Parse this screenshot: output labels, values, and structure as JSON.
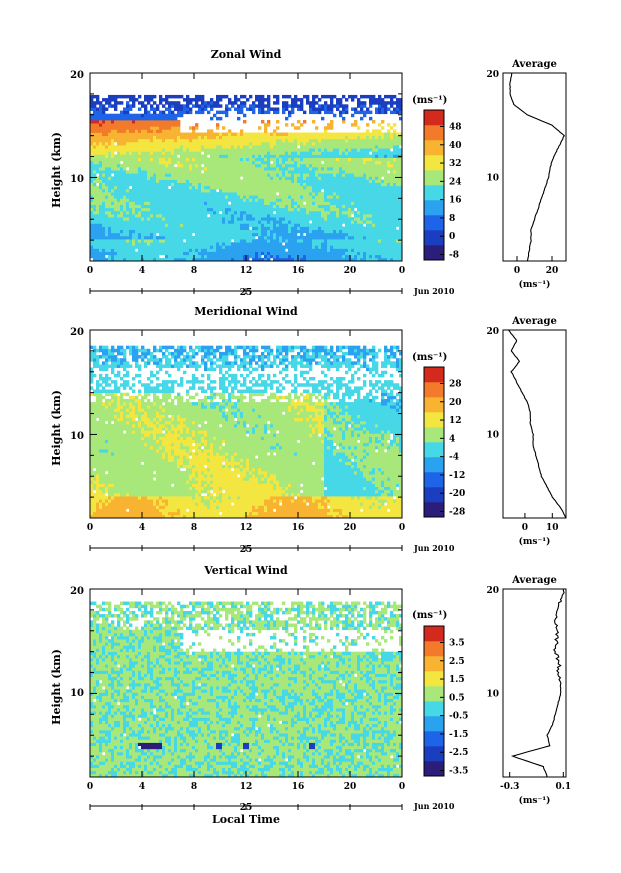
{
  "x_tick_labels": [
    "0",
    "4",
    "8",
    "12",
    "16",
    "20",
    "0"
  ],
  "date_day": "25",
  "date_month_year": "Jun 2010",
  "xlabel": "Local Time",
  "ylabel": "Height (km)",
  "y_tick_labels": [
    "10",
    "20"
  ],
  "unit_label": "(ms⁻¹)",
  "avg_title": "Average",
  "chart_data": [
    {
      "type": "heatmap",
      "title": "Zonal Wind",
      "x_range_hours": [
        0,
        24
      ],
      "y_range_km": [
        2,
        20
      ],
      "colorbar_ticks": [
        "48",
        "40",
        "32",
        "24",
        "16",
        "8",
        "0",
        "-8"
      ],
      "colorbar_range": [
        -12,
        52
      ],
      "colors": [
        "#2b1e7a",
        "#1b3ec0",
        "#1e64e8",
        "#2aa2f0",
        "#46d8e6",
        "#a8e87a",
        "#f4e640",
        "#f8b430",
        "#f27a2a",
        "#d42a1e"
      ],
      "description": "Strong westerly jet (~40-50 m/s) near 13-15 km in early hours, weak winds near surface; blank region above ~17 km",
      "avg_profile": {
        "type": "line",
        "xlim": [
          -8,
          28
        ],
        "x_tick_labels": [
          "0",
          "20"
        ],
        "heights_km": [
          2,
          3,
          4,
          5,
          6,
          7,
          8,
          9,
          10,
          11,
          12,
          13,
          14,
          15,
          16,
          17,
          18,
          19,
          20
        ],
        "values": [
          6,
          7,
          8,
          8,
          10,
          12,
          14,
          16,
          18,
          19,
          21,
          24,
          27,
          20,
          6,
          -2,
          -4,
          -4,
          -3
        ]
      }
    },
    {
      "type": "heatmap",
      "title": "Meridional Wind",
      "x_range_hours": [
        0,
        24
      ],
      "y_range_km": [
        2,
        20
      ],
      "colorbar_ticks": [
        "28",
        "20",
        "12",
        "4",
        "-4",
        "-12",
        "-20",
        "-28"
      ],
      "colorbar_range": [
        -32,
        32
      ],
      "colors": [
        "#2b1e7a",
        "#1b3ec0",
        "#1e64e8",
        "#2aa2f0",
        "#46d8e6",
        "#a8e87a",
        "#f4e640",
        "#f8b430",
        "#f27a2a",
        "#d42a1e"
      ],
      "description": "Southerly flow (~15-25 m/s) in lowest 2 km, weak winds aloft with negative pockets after 18 LT",
      "avg_profile": {
        "type": "line",
        "xlim": [
          -8,
          15
        ],
        "x_tick_labels": [
          "0",
          "10"
        ],
        "heights_km": [
          2,
          3,
          4,
          5,
          6,
          7,
          8,
          9,
          10,
          11,
          12,
          13,
          14,
          15,
          16,
          17,
          18,
          19,
          20
        ],
        "values": [
          15,
          13,
          10,
          8,
          6,
          5,
          4,
          3,
          3,
          2,
          2,
          1,
          -1,
          -3,
          -5,
          -2,
          -5,
          -3,
          -6
        ]
      }
    },
    {
      "type": "heatmap",
      "title": "Vertical Wind",
      "x_range_hours": [
        0,
        24
      ],
      "y_range_km": [
        2,
        20
      ],
      "colorbar_ticks": [
        "3.5",
        "2.5",
        "1.5",
        "0.5",
        "-0.5",
        "-1.5",
        "-2.5",
        "-3.5"
      ],
      "colorbar_range": [
        -4,
        4
      ],
      "colors": [
        "#2b1e7a",
        "#1b3ec0",
        "#1e64e8",
        "#2aa2f0",
        "#46d8e6",
        "#a8e87a",
        "#f4e640",
        "#f8b430",
        "#f27a2a",
        "#d42a1e"
      ],
      "description": "Mostly weak vertical motion (near -0.5 to 0.5 m/s) with strong downdraft near 4-6 km around 4-6 LT",
      "avg_profile": {
        "type": "line",
        "xlim": [
          -0.35,
          0.12
        ],
        "x_tick_labels": [
          "-0.3",
          "0.1"
        ],
        "heights_km": [
          2,
          3,
          4,
          5,
          6,
          7,
          8,
          9,
          10,
          11,
          12,
          13,
          14,
          15,
          16,
          17,
          18,
          19,
          20
        ],
        "values": [
          -0.02,
          -0.05,
          -0.28,
          0.0,
          -0.02,
          0.02,
          0.04,
          0.06,
          0.08,
          0.08,
          0.06,
          0.07,
          0.04,
          0.05,
          0.06,
          0.04,
          0.06,
          0.08,
          0.1
        ]
      }
    }
  ]
}
